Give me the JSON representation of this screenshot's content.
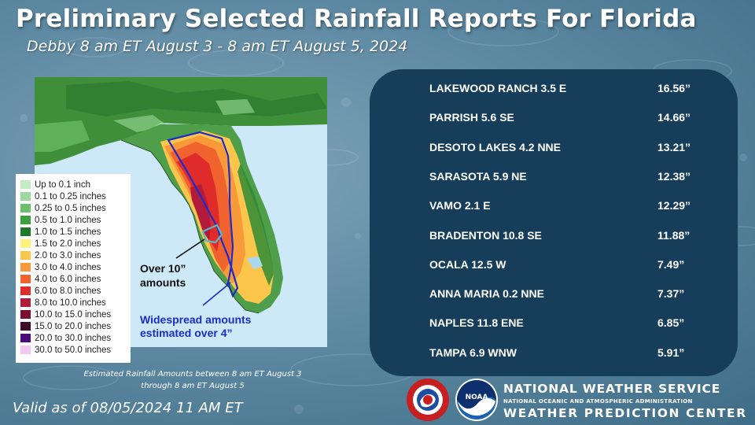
{
  "header": {
    "title": "Preliminary Selected Rainfall Reports For Florida",
    "subtitle": "Debby 8 am ET August 3 - 8 am ET August 5, 2024"
  },
  "map": {
    "legend": [
      {
        "label": "Up to 0.1 inch",
        "color": "#c4ecc4"
      },
      {
        "label": "0.1 to 0.25 inches",
        "color": "#9ed89e"
      },
      {
        "label": "0.25 to 0.5 inches",
        "color": "#6cbf6c"
      },
      {
        "label": "0.5 to 1.0 inches",
        "color": "#3fa03f"
      },
      {
        "label": "1.0 to 1.5 inches",
        "color": "#1e7a2a"
      },
      {
        "label": "1.5 to 2.0 inches",
        "color": "#fff27a"
      },
      {
        "label": "2.0 to 3.0 inches",
        "color": "#fcc64d"
      },
      {
        "label": "3.0 to 4.0 inches",
        "color": "#f99a3a"
      },
      {
        "label": "4.0 to 6.0 inches",
        "color": "#f0632f"
      },
      {
        "label": "6.0 to 8.0 inches",
        "color": "#e02b2b"
      },
      {
        "label": "8.0 to 10.0 inches",
        "color": "#b31b3a"
      },
      {
        "label": "10.0 to 15.0 inches",
        "color": "#7a0e2e"
      },
      {
        "label": "15.0 to 20.0 inches",
        "color": "#3f0a28"
      },
      {
        "label": "20.0 to 30.0 inches",
        "color": "#4b0a7a"
      },
      {
        "label": "30.0 to 50.0 inches",
        "color": "#f2c8f2"
      }
    ],
    "annotation_over10": "Over 10” amounts",
    "annotation_widespread": "Widespread amounts estimated over 4”",
    "caption": "Estimated Rainfall Amounts between 8 am ET August 3 through 8 am ET August 5"
  },
  "reports": [
    {
      "station": "LAKEWOOD RANCH 3.5 E",
      "amount": "16.56”"
    },
    {
      "station": "PARRISH 5.6 SE",
      "amount": "14.66”"
    },
    {
      "station": "DESOTO LAKES 4.2 NNE",
      "amount": "13.21”"
    },
    {
      "station": "SARASOTA 5.9 NE",
      "amount": "12.38”"
    },
    {
      "station": "VAMO 2.1 E",
      "amount": "12.29”"
    },
    {
      "station": "BRADENTON 10.8 SE",
      "amount": "11.88”"
    },
    {
      "station": "OCALA 12.5 W",
      "amount": "7.49”"
    },
    {
      "station": "ANNA MARIA 0.2 NNE",
      "amount": "7.37”"
    },
    {
      "station": "NAPLES 11.8 ENE",
      "amount": "6.85”"
    },
    {
      "station": "TAMPA 6.9 WNW",
      "amount": "5.91”"
    }
  ],
  "footer": {
    "valid": "Valid as of 08/05/2024  11 AM ET",
    "agency_line1": "NATIONAL WEATHER SERVICE",
    "agency_line2": "NATIONAL OCEANIC AND ATMOSPHERIC ADMINISTRATION",
    "agency_line3": "WEATHER PREDICTION CENTER",
    "nws_logo_text": "NATIONAL WEATHER SERVICE",
    "noaa_logo_text": "NOAA"
  },
  "icons": {
    "nws_logo": "nws-logo-icon",
    "noaa_logo": "noaa-logo-icon"
  },
  "colors": {
    "report_panel": "#163d5a",
    "over10_outline": "#58b8c8",
    "widespread_outline": "#1c2ccc"
  }
}
